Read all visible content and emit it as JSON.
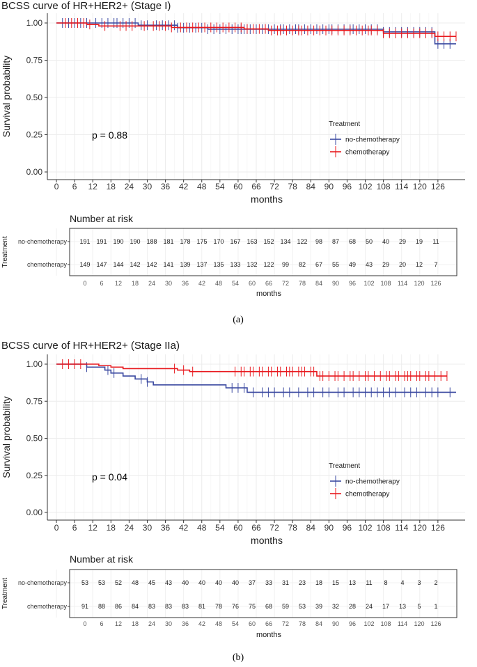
{
  "colors": {
    "no_chemo": "#3a49a0",
    "chemo": "#e8191e",
    "grid": "#ececec",
    "axis": "#333333"
  },
  "chart_data": [
    {
      "type": "line",
      "title": "BCSS curve of HR+HER2+ (Stage I)",
      "xlabel": "months",
      "ylabel": "Survival probability",
      "x_ticks": [
        0,
        6,
        12,
        18,
        24,
        30,
        36,
        42,
        48,
        54,
        60,
        66,
        72,
        78,
        84,
        90,
        96,
        102,
        108,
        114,
        120,
        126
      ],
      "x_ticks_text": [
        "0",
        "6",
        "12",
        "18",
        "24",
        "30",
        "36",
        "42",
        "48",
        "54",
        "60",
        "66",
        "72",
        "78",
        "84",
        "90",
        "96",
        "102",
        "108",
        "114",
        "120",
        "126"
      ],
      "xlim": [
        -3,
        135
      ],
      "y_ticks_text": [
        "1.00",
        "0.75",
        "0.50",
        "0.25",
        "0.00"
      ],
      "ylim": [
        0,
        1
      ],
      "p_value": "p = 0.88",
      "legend_title": "Treatment",
      "series": [
        {
          "name": "no-chemotherapy",
          "steps": [
            [
              0,
              1.0
            ],
            [
              27,
              0.985
            ],
            [
              40,
              0.968
            ],
            [
              50,
              0.958
            ],
            [
              108,
              0.94
            ],
            [
              125,
              0.86
            ],
            [
              132,
              0.86
            ]
          ],
          "censor": [
            2,
            4,
            6,
            8,
            10,
            13,
            15,
            17,
            19,
            20,
            22,
            24,
            26,
            28,
            30,
            33,
            35,
            37,
            39,
            40,
            42,
            44,
            46,
            48,
            50,
            52,
            54,
            56,
            58,
            60,
            61,
            62,
            63,
            64,
            66,
            68,
            70,
            72,
            74,
            75,
            77,
            79,
            80,
            82,
            84,
            86,
            88,
            90,
            91,
            93,
            95,
            97,
            98,
            100,
            102,
            104,
            106,
            108,
            110,
            112,
            114,
            116,
            118,
            120,
            122,
            124,
            126,
            128,
            130
          ]
        },
        {
          "name": "chemotherapy",
          "steps": [
            [
              0,
              1.0
            ],
            [
              10,
              0.99
            ],
            [
              14,
              0.98
            ],
            [
              38,
              0.97
            ],
            [
              62,
              0.96
            ],
            [
              70,
              0.95
            ],
            [
              108,
              0.93
            ],
            [
              125,
              0.91
            ],
            [
              132,
              0.91
            ]
          ],
          "censor": [
            3,
            5,
            7,
            9,
            11,
            16,
            21,
            23,
            25,
            29,
            32,
            34,
            36,
            38,
            41,
            43,
            45,
            47,
            49,
            51,
            53,
            55,
            57,
            59,
            61,
            63,
            65,
            67,
            69,
            71,
            73,
            74,
            76,
            78,
            80,
            81,
            83,
            85,
            87,
            89,
            91,
            93,
            95,
            97,
            99,
            101,
            103,
            104,
            106,
            108,
            110,
            112,
            114,
            116,
            118,
            120,
            122,
            124,
            126,
            128,
            130,
            132
          ]
        }
      ],
      "risk_table": {
        "title": "Number at risk",
        "ylabel": "Treatment",
        "xlabel": "months",
        "rows": [
          {
            "label": "no-chemotherapy",
            "values": [
              "191",
              "191",
              "190",
              "190",
              "188",
              "181",
              "178",
              "175",
              "170",
              "167",
              "163",
              "152",
              "134",
              "122",
              "98",
              "87",
              "68",
              "50",
              "40",
              "29",
              "19",
              "11"
            ]
          },
          {
            "label": "chemotherapy",
            "values": [
              "149",
              "147",
              "144",
              "142",
              "142",
              "141",
              "139",
              "137",
              "135",
              "133",
              "132",
              "122",
              "99",
              "82",
              "67",
              "55",
              "49",
              "43",
              "29",
              "20",
              "12",
              "7"
            ]
          }
        ]
      },
      "caption": "(a)"
    },
    {
      "type": "line",
      "title": "BCSS curve of HR+HER2+ (Stage IIa)",
      "xlabel": "months",
      "ylabel": "Survival probability",
      "x_ticks": [
        0,
        6,
        12,
        18,
        24,
        30,
        36,
        42,
        48,
        54,
        60,
        66,
        72,
        78,
        84,
        90,
        96,
        102,
        108,
        114,
        120,
        126
      ],
      "x_ticks_text": [
        "0",
        "6",
        "12",
        "18",
        "24",
        "30",
        "36",
        "42",
        "48",
        "54",
        "60",
        "66",
        "72",
        "78",
        "84",
        "90",
        "96",
        "102",
        "108",
        "114",
        "120",
        "126"
      ],
      "xlim": [
        -3,
        135
      ],
      "y_ticks_text": [
        "1.00",
        "0.75",
        "0.50",
        "0.25",
        "0.00"
      ],
      "ylim": [
        0,
        1
      ],
      "p_value": "p = 0.04",
      "legend_title": "Treatment",
      "series": [
        {
          "name": "no-chemotherapy",
          "steps": [
            [
              0,
              1.0
            ],
            [
              10,
              0.98
            ],
            [
              16,
              0.96
            ],
            [
              18,
              0.94
            ],
            [
              22,
              0.92
            ],
            [
              26,
              0.9
            ],
            [
              30,
              0.88
            ],
            [
              32,
              0.86
            ],
            [
              56,
              0.84
            ],
            [
              63,
              0.81
            ],
            [
              132,
              0.81
            ]
          ],
          "censor": [
            10,
            17,
            19,
            28,
            30,
            58,
            60,
            62,
            65,
            68,
            70,
            72,
            75,
            77,
            80,
            83,
            85,
            88,
            90,
            93,
            95,
            98,
            100,
            102,
            104,
            106,
            108,
            110,
            112,
            115,
            117,
            119,
            122,
            124,
            126,
            130
          ]
        },
        {
          "name": "chemotherapy",
          "steps": [
            [
              0,
              1.0
            ],
            [
              14,
              0.99
            ],
            [
              18,
              0.98
            ],
            [
              22,
              0.97
            ],
            [
              40,
              0.96
            ],
            [
              44,
              0.95
            ],
            [
              86,
              0.92
            ],
            [
              129,
              0.92
            ]
          ],
          "censor": [
            2,
            4,
            6,
            8,
            39,
            42,
            45,
            59,
            61,
            62,
            64,
            65,
            67,
            68,
            70,
            71,
            73,
            74,
            76,
            77,
            78,
            80,
            81,
            82,
            84,
            85,
            87,
            88,
            90,
            92,
            93,
            95,
            97,
            98,
            100,
            102,
            103,
            105,
            107,
            109,
            110,
            112,
            113,
            115,
            116,
            117,
            119,
            120,
            122,
            123,
            125,
            127,
            129
          ]
        }
      ],
      "risk_table": {
        "title": "Number at risk",
        "ylabel": "Treatment",
        "xlabel": "months",
        "rows": [
          {
            "label": "no-chemotherapy",
            "values": [
              "53",
              "53",
              "52",
              "48",
              "45",
              "43",
              "40",
              "40",
              "40",
              "40",
              "37",
              "33",
              "31",
              "23",
              "18",
              "15",
              "13",
              "11",
              "8",
              "4",
              "3",
              "2"
            ]
          },
          {
            "label": "chemotherapy",
            "values": [
              "91",
              "88",
              "86",
              "84",
              "83",
              "83",
              "83",
              "81",
              "78",
              "76",
              "75",
              "68",
              "59",
              "53",
              "39",
              "32",
              "28",
              "24",
              "17",
              "13",
              "5",
              "1"
            ]
          }
        ]
      },
      "caption": "(b)"
    }
  ]
}
